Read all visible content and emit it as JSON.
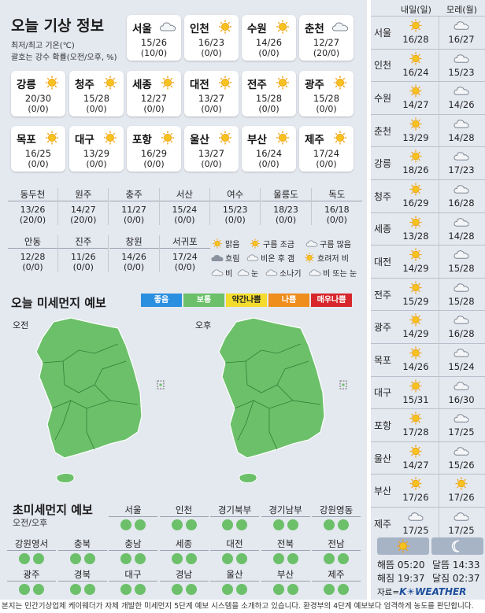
{
  "weather": {
    "title": "오늘 기상 정보",
    "note1": "최저/최고 기온(℃)",
    "note2": "괄호는 강수 확률(오전/오후, %)",
    "main_cities": [
      {
        "name": "서울",
        "temp": "15/26",
        "prob": "(10/0)",
        "icon": "cloud-icon"
      },
      {
        "name": "인천",
        "temp": "16/23",
        "prob": "(0/0)",
        "icon": "sun-icon"
      },
      {
        "name": "수원",
        "temp": "14/26",
        "prob": "(0/0)",
        "icon": "sun-icon"
      },
      {
        "name": "춘천",
        "temp": "12/27",
        "prob": "(20/0)",
        "icon": "cloud-icon"
      },
      {
        "name": "강릉",
        "temp": "20/30",
        "prob": "(0/0)",
        "icon": "sun-icon"
      },
      {
        "name": "청주",
        "temp": "15/28",
        "prob": "(0/0)",
        "icon": "sun-icon"
      },
      {
        "name": "세종",
        "temp": "12/27",
        "prob": "(0/0)",
        "icon": "sun-icon"
      },
      {
        "name": "대전",
        "temp": "13/27",
        "prob": "(0/0)",
        "icon": "sun-icon"
      },
      {
        "name": "전주",
        "temp": "15/28",
        "prob": "(0/0)",
        "icon": "sun-icon"
      },
      {
        "name": "광주",
        "temp": "15/28",
        "prob": "(0/0)",
        "icon": "sun-icon"
      },
      {
        "name": "목포",
        "temp": "16/25",
        "prob": "(0/0)",
        "icon": "sun-icon"
      },
      {
        "name": "대구",
        "temp": "13/29",
        "prob": "(0/0)",
        "icon": "sun-icon"
      },
      {
        "name": "포항",
        "temp": "16/29",
        "prob": "(0/0)",
        "icon": "sun-icon"
      },
      {
        "name": "울산",
        "temp": "13/27",
        "prob": "(0/0)",
        "icon": "sun-icon"
      },
      {
        "name": "부산",
        "temp": "16/24",
        "prob": "(0/0)",
        "icon": "sun-icon"
      },
      {
        "name": "제주",
        "temp": "17/24",
        "prob": "(0/0)",
        "icon": "sun-icon"
      }
    ],
    "small_row1": [
      {
        "name": "동두천",
        "temp": "13/26",
        "prob": "(20/0)"
      },
      {
        "name": "원주",
        "temp": "14/27",
        "prob": "(20/0)"
      },
      {
        "name": "충주",
        "temp": "11/27",
        "prob": "(0/0)"
      },
      {
        "name": "서산",
        "temp": "15/24",
        "prob": "(0/0)"
      },
      {
        "name": "여수",
        "temp": "15/23",
        "prob": "(0/0)"
      },
      {
        "name": "울릉도",
        "temp": "18/23",
        "prob": "(0/0)"
      },
      {
        "name": "독도",
        "temp": "16/18",
        "prob": "(0/0)"
      }
    ],
    "small_row2": [
      {
        "name": "안동",
        "temp": "12/28",
        "prob": "(0/0)"
      },
      {
        "name": "진주",
        "temp": "11/26",
        "prob": "(0/0)"
      },
      {
        "name": "창원",
        "temp": "14/26",
        "prob": "(0/0)"
      },
      {
        "name": "서귀포",
        "temp": "17/24",
        "prob": "(0/0)"
      }
    ],
    "legend": {
      "clear": "맑음",
      "partly": "구름 조금",
      "mostly": "구름 많음",
      "cloudy": "흐림",
      "rain_clear": "비온 후 갬",
      "cloudy_rain": "흐려저 비",
      "rain": "비",
      "snow": "눈",
      "shower": "소나기",
      "rain_snow": "비 또는 눈"
    }
  },
  "dust": {
    "title": "오늘 미세먼지 예보",
    "levels": [
      {
        "label": "좋음",
        "color": "#2b8fe0"
      },
      {
        "label": "보통",
        "color": "#6cc06a"
      },
      {
        "label": "약간나쁨",
        "color": "#f3dc2d"
      },
      {
        "label": "나쁨",
        "color": "#ef8d1d"
      },
      {
        "label": "매우나쁨",
        "color": "#d7272c"
      }
    ],
    "am": "오전",
    "pm": "오후"
  },
  "ultrafine": {
    "title": "초미세먼지 예보",
    "sub": "오전/오후",
    "row1": [
      "서울",
      "인천",
      "경기북부",
      "경기남부",
      "강원영동"
    ],
    "row2": [
      "강원영서",
      "충북",
      "충남",
      "세종",
      "대전",
      "전북",
      "전남"
    ],
    "row3": [
      "광주",
      "경북",
      "대구",
      "경남",
      "울산",
      "부산",
      "제주"
    ]
  },
  "forecast": {
    "head_tomorrow": "내일(일)",
    "head_after": "모레(월)",
    "rows": [
      {
        "city": "서울",
        "t1": "16/28",
        "i1": "sun-icon",
        "t2": "16/27",
        "i2": "cloud-icon"
      },
      {
        "city": "인천",
        "t1": "16/24",
        "i1": "sun-icon",
        "t2": "15/23",
        "i2": "cloud-icon"
      },
      {
        "city": "수원",
        "t1": "14/27",
        "i1": "sun-icon",
        "t2": "14/26",
        "i2": "cloud-icon"
      },
      {
        "city": "춘천",
        "t1": "13/29",
        "i1": "sun-icon",
        "t2": "14/28",
        "i2": "cloud-icon"
      },
      {
        "city": "강릉",
        "t1": "18/26",
        "i1": "sun-icon",
        "t2": "17/23",
        "i2": "cloud-icon"
      },
      {
        "city": "청주",
        "t1": "16/29",
        "i1": "sun-icon",
        "t2": "16/28",
        "i2": "cloud-icon"
      },
      {
        "city": "세종",
        "t1": "13/28",
        "i1": "sun-icon",
        "t2": "14/28",
        "i2": "cloud-icon"
      },
      {
        "city": "대전",
        "t1": "14/29",
        "i1": "sun-icon",
        "t2": "15/28",
        "i2": "cloud-icon"
      },
      {
        "city": "전주",
        "t1": "15/29",
        "i1": "sun-icon",
        "t2": "15/28",
        "i2": "cloud-icon"
      },
      {
        "city": "광주",
        "t1": "14/29",
        "i1": "sun-icon",
        "t2": "16/28",
        "i2": "cloud-icon"
      },
      {
        "city": "목포",
        "t1": "14/26",
        "i1": "sun-icon",
        "t2": "15/24",
        "i2": "cloud-icon"
      },
      {
        "city": "대구",
        "t1": "15/31",
        "i1": "sun-icon",
        "t2": "16/30",
        "i2": "cloud-icon"
      },
      {
        "city": "포항",
        "t1": "17/28",
        "i1": "sun-icon",
        "t2": "17/25",
        "i2": "cloud-icon"
      },
      {
        "city": "울산",
        "t1": "14/27",
        "i1": "sun-icon",
        "t2": "15/26",
        "i2": "cloud-icon"
      },
      {
        "city": "부산",
        "t1": "17/26",
        "i1": "sun-icon",
        "t2": "17/26",
        "i2": "sun-icon"
      },
      {
        "city": "제주",
        "t1": "17/25",
        "i1": "cloud-icon",
        "t2": "17/25",
        "i2": "cloud-icon"
      }
    ],
    "sunrise": "해뜸 05:20",
    "sunset": "해짐 19:37",
    "moonrise": "달뜸 14:33",
    "moonset": "달짐 02:37",
    "source_prefix": "자료=",
    "source_brand": "K☀WEATHER"
  },
  "footer": "본지는 민간기상업체 케이웨더가 자체 개발한 미세먼지 5단계 예보 시스템을 소개하고 있습니다. 환경부의 4단계 예보보다 엄격하게 농도를 판단합니다."
}
